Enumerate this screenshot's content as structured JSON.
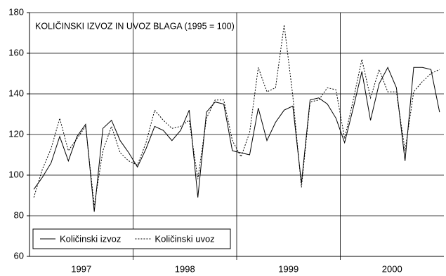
{
  "chart_data": {
    "type": "line",
    "title": "KOLIČINSKI IZVOZ IN UVOZ BLAGA (1995 = 100)",
    "categories": [
      null,
      null,
      null,
      null,
      null,
      "1997",
      null,
      null,
      null,
      null,
      null,
      null,
      null,
      null,
      null,
      null,
      null,
      "1998",
      null,
      null,
      null,
      null,
      null,
      null,
      null,
      null,
      null,
      null,
      null,
      "1999",
      null,
      null,
      null,
      null,
      null,
      null,
      null,
      null,
      null,
      null,
      null,
      "2000",
      null,
      null,
      null,
      null,
      null,
      null
    ],
    "series": [
      {
        "name": "Količinski izvoz",
        "color": "#000000",
        "style": "solid",
        "values": [
          93,
          99,
          106,
          119,
          107,
          119,
          125,
          82,
          123,
          127,
          117,
          111,
          104,
          113,
          124,
          122,
          117,
          122,
          132,
          89,
          131,
          136,
          135,
          112,
          111,
          110,
          133,
          117,
          126,
          132,
          134,
          96,
          137,
          138,
          135,
          128,
          116,
          133,
          151,
          127,
          145,
          153,
          143,
          107,
          153,
          153,
          152,
          131
        ]
      },
      {
        "name": "Količinski uvoz",
        "color": "#000000",
        "style": "dotted",
        "values": [
          89,
          103,
          113,
          128,
          112,
          118,
          124,
          85,
          112,
          124,
          111,
          107,
          105,
          116,
          132,
          127,
          123,
          124,
          127,
          98,
          128,
          137,
          137,
          117,
          109,
          121,
          153,
          141,
          143,
          174,
          139,
          94,
          136,
          137,
          143,
          142,
          118,
          137,
          157,
          138,
          152,
          141,
          141,
          112,
          141,
          146,
          150,
          152
        ]
      }
    ],
    "ylim": [
      60,
      180
    ],
    "yticks": [
      60,
      80,
      100,
      120,
      140,
      160,
      180
    ],
    "grid": true,
    "legend": "bottom-left"
  }
}
